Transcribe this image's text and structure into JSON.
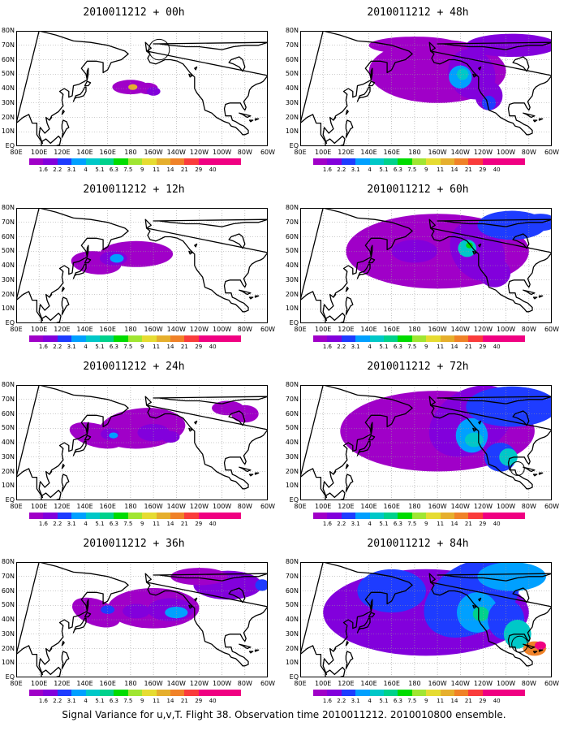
{
  "figure": {
    "caption": "Signal Variance for u,v,T. Flight 38. Observation time 2010011212. 2010010800 ensemble."
  },
  "axes": {
    "lat_labels": [
      "80N",
      "70N",
      "60N",
      "50N",
      "40N",
      "30N",
      "20N",
      "10N",
      "EQ"
    ],
    "lon_labels": [
      "80E",
      "100E",
      "120E",
      "140E",
      "160E",
      "180",
      "160W",
      "140W",
      "120W",
      "100W",
      "80W",
      "60W"
    ],
    "lat_range": [
      0,
      80
    ],
    "lon_range_deg_east": [
      80,
      300
    ]
  },
  "colorbar": {
    "levels": [
      "1.6",
      "2.2",
      "3.1",
      "4",
      "5.1",
      "6.3",
      "7.5",
      "9",
      "11",
      "14",
      "21",
      "29",
      "40"
    ],
    "colors": [
      "#a000c8",
      "#8200dc",
      "#1e3cff",
      "#00a0ff",
      "#00c8c8",
      "#00d28c",
      "#00dc00",
      "#a0e632",
      "#e6dc32",
      "#e6af2d",
      "#f08228",
      "#fa3c3c",
      "#f00082"
    ]
  },
  "panels": [
    {
      "title": "2010011212 + 00h",
      "intensity": 0.05,
      "stage": 0,
      "circles": [
        {
          "lon": 205,
          "lat": 67,
          "r": 9
        }
      ]
    },
    {
      "title": "2010011212 + 48h",
      "intensity": 0.55,
      "stage": 4,
      "circles": []
    },
    {
      "title": "2010011212 + 12h",
      "intensity": 0.25,
      "stage": 1,
      "circles": []
    },
    {
      "title": "2010011212 + 60h",
      "intensity": 0.7,
      "stage": 5,
      "circles": []
    },
    {
      "title": "2010011212 + 24h",
      "intensity": 0.35,
      "stage": 2,
      "circles": []
    },
    {
      "title": "2010011212 + 72h",
      "intensity": 0.85,
      "stage": 6,
      "circles": [
        {
          "lon": 270,
          "lat": 22,
          "r": 6
        }
      ]
    },
    {
      "title": "2010011212 + 36h",
      "intensity": 0.45,
      "stage": 3,
      "circles": []
    },
    {
      "title": "2010011212 + 84h",
      "intensity": 1.0,
      "stage": 7,
      "circles": [
        {
          "lon": 272,
          "lat": 23,
          "r": 7
        }
      ]
    }
  ]
}
